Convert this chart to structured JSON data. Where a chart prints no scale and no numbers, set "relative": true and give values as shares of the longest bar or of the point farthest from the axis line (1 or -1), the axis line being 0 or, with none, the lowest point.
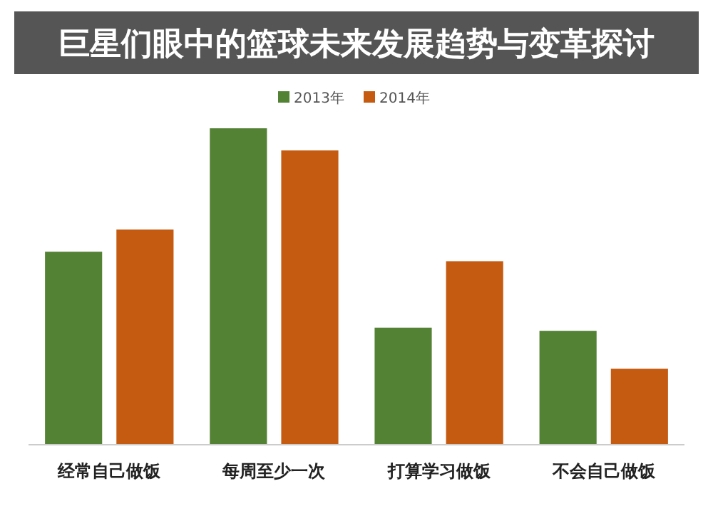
{
  "chart_data": {
    "type": "bar",
    "title": "巨星们眼中的篮球未来发展趋势与变革探讨",
    "categories": [
      "经常自己做饭",
      "每周至少一次",
      "打算学习做饭",
      "不会自己做饭"
    ],
    "relative": true,
    "legend": "top",
    "series": [
      {
        "name": "2013年",
        "color": "#548235",
        "values": [
          0.61,
          1,
          0.37,
          0.36
        ]
      },
      {
        "name": "2014年",
        "color": "#c55a11",
        "values": [
          0.68,
          0.93,
          0.58,
          0.24
        ]
      }
    ]
  }
}
